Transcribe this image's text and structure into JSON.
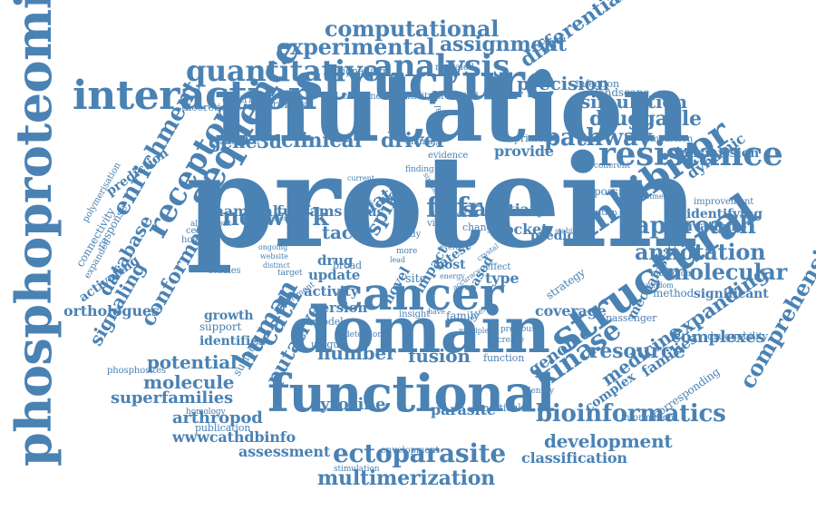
{
  "colors": {
    "text": "#4a82b4",
    "background": "#ffffff"
  },
  "words": [
    "protein",
    "mutation",
    "structure",
    "domain",
    "cancer",
    "structural",
    "functional",
    "phosphoproteomics",
    "interaction",
    "sequence",
    "analysis",
    "inhibitor",
    "resistance",
    "quantitative",
    "computational",
    "experimental",
    "assignment",
    "network",
    "receptor",
    "approach",
    "annotation",
    "molecular",
    "bioinformatics",
    "ectoparasite",
    "multimerization",
    "kinase",
    "human",
    "cath",
    "fgfr",
    "pathway",
    "clinical",
    "gene3d",
    "driver",
    "druggable",
    "simulation",
    "precision",
    "differential",
    "enrichment",
    "comprehensive",
    "expanding",
    "medicine",
    "resource",
    "complexes",
    "development",
    "classification",
    "tyrosine",
    "parasite",
    "potential",
    "molecule",
    "superfamilies",
    "arthropod",
    "wwwcathdbinfo",
    "number",
    "fusion",
    "genome",
    "assessment",
    "conformer",
    "putative",
    "database",
    "signaling",
    "spike",
    "data",
    "tacc",
    "sar",
    "funfams",
    "mammal",
    "virus",
    "coverage",
    "provide",
    "tertiary",
    "pocket",
    "type",
    "based",
    "version",
    "activity",
    "update",
    "drug",
    "novel",
    "impact",
    "latest",
    "site",
    "host",
    "predict",
    "strategy",
    "orthologues",
    "activating",
    "connectivity",
    "response",
    "prediction",
    "phosphosites",
    "identifies",
    "growth",
    "support",
    "surface",
    "transmission",
    "dynamic",
    "identifying",
    "activation",
    "method",
    "significant",
    "mechanistic",
    "family",
    "families",
    "complex",
    "corresponding",
    "information",
    "druggability",
    "passenger",
    "signalling",
    "revealed",
    "landscape",
    "infection",
    "comparison",
    "contribute",
    "fibroblast",
    "theoretical",
    "combined",
    "sensitivity",
    "predicted",
    "primary",
    "animal",
    "evidence",
    "finding",
    "improvement",
    "possible",
    "alteration",
    "biological",
    "stability",
    "random",
    "model",
    "cellular",
    "alignment",
    "horizon",
    "calculation",
    "transient",
    "publication",
    "homology",
    "stimulation",
    "envelopment",
    "function",
    "particular",
    "identify",
    "detection",
    "insight",
    "unique",
    "studies",
    "effect",
    "increase",
    "previous",
    "multiple",
    "context",
    "broad",
    "study",
    "change",
    "expanded",
    "polymerisation",
    "coherent",
    "treatment",
    "involved",
    "additional",
    "viral",
    "ongoing",
    "crystal",
    "more",
    "energy",
    "accuracy",
    "experiment",
    "target",
    "website",
    "distinct",
    "lead",
    "overall",
    "similar",
    "have",
    "current",
    "genetic"
  ]
}
